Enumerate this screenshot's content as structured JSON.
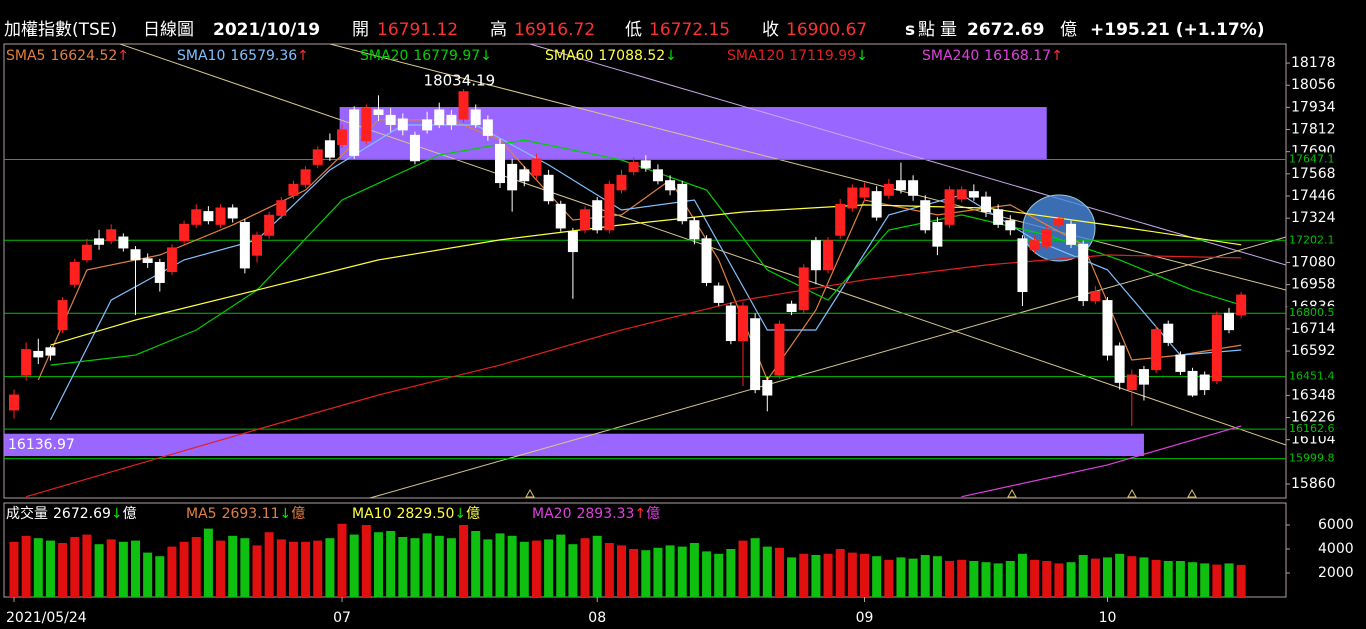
{
  "chart_data": {
    "type": "candlestick",
    "header": {
      "title": "加權指數(TSE)",
      "period": "日線圖",
      "date": "2021/10/19",
      "open_label": "開",
      "high_label": "高",
      "low_label": "低",
      "close_label": "收",
      "close_suffix": "s",
      "unit": "點",
      "volume_label": "量",
      "volume_unit": "億",
      "change": "+195.21 (+1.17%)"
    },
    "categories": [
      "2021/05/24",
      null,
      null,
      null,
      null,
      null,
      null,
      null,
      null,
      null,
      null,
      null,
      null,
      null,
      null,
      null,
      null,
      null,
      null,
      null,
      null,
      null,
      null,
      null,
      null,
      null,
      null,
      "07",
      null,
      null,
      null,
      null,
      null,
      null,
      null,
      null,
      null,
      null,
      null,
      null,
      null,
      null,
      null,
      null,
      null,
      null,
      null,
      null,
      "08",
      null,
      null,
      null,
      null,
      null,
      null,
      null,
      null,
      null,
      null,
      null,
      null,
      null,
      null,
      null,
      null,
      null,
      null,
      null,
      null,
      null,
      "09",
      null,
      null,
      null,
      null,
      null,
      null,
      null,
      null,
      null,
      null,
      null,
      null,
      null,
      null,
      null,
      null,
      null,
      null,
      null,
      "10",
      null,
      null,
      null,
      null,
      null,
      null,
      null,
      null,
      null,
      null,
      null
    ],
    "open": [
      16268,
      16460,
      16590,
      16610,
      16710,
      16960,
      17095,
      17210,
      17200,
      17220,
      17150,
      17100,
      17080,
      17030,
      17200,
      17290,
      17360,
      17290,
      17380,
      17300,
      17120,
      17230,
      17340,
      17450,
      17510,
      17620,
      17750,
      17730,
      17920,
      17750,
      17920,
      17890,
      17870,
      17780,
      17865,
      17920,
      17890,
      17870,
      17920,
      17865,
      17730,
      17620,
      17590,
      17560,
      17560,
      17400,
      17250,
      17260,
      17420,
      17260,
      17480,
      17580,
      17640,
      17590,
      17530,
      17510,
      17310,
      17210,
      16950,
      16840,
      16650,
      16770,
      16430,
      16460,
      16850,
      16820,
      17200,
      17040,
      17230,
      17380,
      17440,
      17470,
      17450,
      17530,
      17530,
      17420,
      17300,
      17290,
      17430,
      17470,
      17440,
      17370,
      17310,
      17210,
      17150,
      17170,
      17290,
      17290,
      17180,
      16870,
      16870,
      16620,
      16380,
      16490,
      16490,
      16740,
      16570,
      16480,
      16460,
      16430,
      16800,
      16791.12
    ],
    "high": [
      16380,
      16640,
      16660,
      16620,
      16890,
      17100,
      17210,
      17260,
      17290,
      17240,
      17170,
      17130,
      17100,
      17180,
      17310,
      17400,
      17390,
      17400,
      17400,
      17320,
      17250,
      17360,
      17440,
      17530,
      17610,
      17720,
      17790,
      17840,
      17940,
      17950,
      18000,
      17930,
      17900,
      17800,
      17910,
      17960,
      17920,
      18034.19,
      17950,
      17890,
      17760,
      17650,
      17610,
      17680,
      17590,
      17420,
      17270,
      17390,
      17440,
      17530,
      17590,
      17660,
      17670,
      17620,
      17560,
      17530,
      17330,
      17230,
      16970,
      16860,
      16860,
      16800,
      16450,
      16760,
      16870,
      17070,
      17220,
      17220,
      17430,
      17510,
      17520,
      17500,
      17540,
      17630,
      17560,
      17450,
      17330,
      17500,
      17500,
      17510,
      17470,
      17400,
      17340,
      17230,
      17230,
      17280,
      17340,
      17310,
      17200,
      16950,
      16890,
      16640,
      16490,
      16510,
      16730,
      16760,
      16590,
      16500,
      16480,
      16810,
      16830,
      16916.72
    ],
    "low": [
      16220,
      16430,
      16520,
      16540,
      16690,
      16940,
      17080,
      17150,
      17180,
      17140,
      16790,
      17050,
      16920,
      17010,
      17180,
      17270,
      17290,
      17270,
      17300,
      17020,
      17080,
      17210,
      17320,
      17430,
      17490,
      17600,
      17640,
      17710,
      17650,
      17730,
      17860,
      17800,
      17780,
      17620,
      17790,
      17820,
      17810,
      17850,
      17820,
      17750,
      17490,
      17360,
      17500,
      17540,
      17400,
      17250,
      16880,
      17240,
      17240,
      17240,
      17460,
      17560,
      17580,
      17510,
      17450,
      17290,
      17180,
      16950,
      16840,
      16630,
      16400,
      16360,
      16260,
      16440,
      16790,
      16800,
      16960,
      17020,
      17210,
      17360,
      17420,
      17310,
      17430,
      17460,
      17420,
      17240,
      17120,
      17270,
      17410,
      17420,
      17330,
      17270,
      17230,
      16840,
      17130,
      17150,
      17270,
      17160,
      16840,
      16850,
      16540,
      16380,
      16180,
      16320,
      16470,
      16620,
      16460,
      16340,
      16350,
      16410,
      16690,
      16772.15
    ],
    "close": [
      16350,
      16600,
      16560,
      16570,
      16870,
      17080,
      17175,
      17180,
      17260,
      17160,
      17095,
      17080,
      16970,
      17160,
      17290,
      17370,
      17310,
      17380,
      17325,
      17050,
      17230,
      17340,
      17420,
      17510,
      17590,
      17700,
      17660,
      17810,
      17670,
      17930,
      17895,
      17840,
      17810,
      17640,
      17810,
      17840,
      17840,
      18020,
      17840,
      17780,
      17520,
      17480,
      17530,
      17650,
      17420,
      17270,
      17140,
      17370,
      17260,
      17510,
      17560,
      17630,
      17600,
      17530,
      17480,
      17310,
      17210,
      16970,
      16860,
      16650,
      16840,
      16380,
      16350,
      16740,
      16810,
      17050,
      17040,
      17200,
      17400,
      17490,
      17490,
      17330,
      17510,
      17480,
      17450,
      17260,
      17170,
      17480,
      17480,
      17440,
      17360,
      17290,
      17260,
      16920,
      17200,
      17260,
      17320,
      17180,
      16870,
      16920,
      16570,
      16420,
      16460,
      16410,
      16710,
      16640,
      16480,
      16350,
      16380,
      16790,
      16710,
      16900.67
    ],
    "up_color": "#ff2020",
    "down_color": "#ffffff",
    "ylim": [
      15783,
      18283
    ],
    "yticks": [
      18178,
      18056,
      17934,
      17812,
      17690,
      17568,
      17446,
      17324,
      17080,
      16958,
      16836,
      16714,
      16592,
      16348,
      16226,
      16104,
      15860
    ],
    "levels": [
      17647.1,
      17202.1,
      16800.5,
      16451.4,
      16162.6,
      15999.8
    ],
    "level_color": "#00c000",
    "zones": [
      {
        "x": [
          26.8,
          85
        ],
        "y": [
          17650,
          17936
        ]
      },
      {
        "x": [
          -0.8,
          93
        ],
        "y": [
          16014,
          16136.97
        ]
      }
    ],
    "zone_color": "#9966ff",
    "lines": [
      {
        "name": "SMA5",
        "value": 16624.52,
        "arrow": "↑",
        "arrow_color": "#ff3030",
        "color": "#e08040",
        "x": [
          2,
          6,
          12,
          18,
          24,
          30,
          36,
          40,
          46,
          50,
          54,
          58,
          62,
          66,
          70,
          76,
          82,
          88,
          92,
          96,
          101
        ],
        "values": [
          16433,
          17039,
          17121,
          17287,
          17479,
          17865,
          17865,
          17754,
          17314,
          17342,
          17534,
          17094,
          16433,
          16818,
          17424,
          17342,
          17397,
          17177,
          16543,
          16570,
          16625
        ]
      },
      {
        "name": "SMA10",
        "value": 16579.36,
        "arrow": "↑",
        "arrow_color": "#ff3030",
        "color": "#80c0ff",
        "x": [
          3,
          8,
          14,
          20,
          26,
          32,
          38,
          44,
          50,
          56,
          62,
          66,
          72,
          78,
          84,
          90,
          96,
          101
        ],
        "values": [
          16213,
          16873,
          17094,
          17204,
          17589,
          17837,
          17837,
          17617,
          17369,
          17424,
          16708,
          16708,
          17342,
          17452,
          17204,
          17039,
          16570,
          16598
        ]
      },
      {
        "name": "SMA20",
        "value": 16779.97,
        "arrow": "↓",
        "arrow_color": "#00e000",
        "color": "#00d000",
        "x": [
          3,
          10,
          15,
          20,
          27,
          35,
          42,
          50,
          57,
          62,
          67,
          72,
          78,
          85,
          91,
          97,
          101
        ],
        "values": [
          16515,
          16570,
          16708,
          16928,
          17424,
          17672,
          17754,
          17644,
          17479,
          17039,
          16873,
          17259,
          17342,
          17231,
          17094,
          16928,
          16845
        ]
      },
      {
        "name": "SMA60",
        "value": 17088.52,
        "arrow": "↓",
        "arrow_color": "#00e000",
        "color": "#ffff40",
        "x": [
          3,
          10,
          20,
          30,
          40,
          50,
          60,
          70,
          80,
          90,
          101
        ],
        "values": [
          16625,
          16763,
          16928,
          17094,
          17204,
          17287,
          17358,
          17397,
          17380,
          17287,
          17177
        ]
      },
      {
        "name": "SMA120",
        "value": 17119.99,
        "arrow": "↓",
        "arrow_color": "#00e000",
        "color": "#e02020",
        "x": [
          1,
          10,
          20,
          30,
          40,
          50,
          60,
          70,
          80,
          90,
          101
        ],
        "values": [
          15790,
          15966,
          16160,
          16350,
          16515,
          16708,
          16873,
          16984,
          17066,
          17121,
          17105
        ]
      },
      {
        "name": "SMA240",
        "value": 16168.17,
        "arrow": "↑",
        "arrow_color": "#ff3030",
        "color": "#e040e0",
        "x": [
          78,
          90,
          101
        ],
        "values": [
          15790,
          15965,
          16180
        ]
      }
    ],
    "volume": {
      "label": "成交量",
      "unit": "億",
      "arrow": "↓",
      "arrow_color": "#00e000",
      "up_color": "#e01010",
      "down_color": "#10c010",
      "values": [
        4600,
        5100,
        4900,
        4700,
        4500,
        5000,
        5200,
        4400,
        4800,
        4600,
        4700,
        3700,
        3400,
        4200,
        4600,
        5000,
        5700,
        4700,
        5100,
        4900,
        4300,
        5400,
        4800,
        4600,
        4600,
        4700,
        4900,
        6100,
        5200,
        6000,
        5400,
        5500,
        5000,
        4900,
        5300,
        5100,
        4900,
        6000,
        5500,
        4800,
        5300,
        5100,
        4600,
        4700,
        4800,
        5200,
        4400,
        4900,
        5100,
        4500,
        4300,
        4000,
        3900,
        4100,
        4300,
        4200,
        4500,
        3800,
        3600,
        4000,
        4700,
        4900,
        4200,
        4100,
        3300,
        3600,
        3500,
        3600,
        4000,
        3700,
        3600,
        3400,
        3100,
        3300,
        3200,
        3500,
        3400,
        3000,
        3100,
        3000,
        2900,
        2800,
        3000,
        3600,
        3100,
        3000,
        2800,
        2900,
        3500,
        3200,
        3300,
        3600,
        3400,
        3300,
        3100,
        3000,
        3000,
        2900,
        2800,
        2700,
        2800,
        2672.69
      ],
      "ylim": [
        0,
        7833
      ],
      "yticks": [
        2000,
        4000,
        6000
      ],
      "averages": [
        {
          "name": "MA5",
          "value": 2693.11,
          "arrow": "↓",
          "arrow_color": "#00e000",
          "color": "#e08040"
        },
        {
          "name": "MA10",
          "value": 2829.5,
          "value_label": "2829.50",
          "arrow": "↓",
          "arrow_color": "#00e000",
          "color": "#ffff40"
        },
        {
          "name": "MA20",
          "value": 2893.33,
          "arrow": "↑",
          "arrow_color": "#ff3030",
          "color": "#e040e0"
        }
      ]
    }
  }
}
